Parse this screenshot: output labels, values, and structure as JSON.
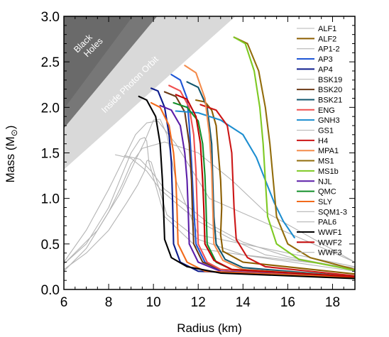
{
  "chart_data": {
    "type": "line",
    "title": "",
    "xlabel": "Radius (km)",
    "ylabel": "Mass (M",
    "ylabel_sub": "⊙",
    "ylabel_close": ")",
    "xlim": [
      6,
      19
    ],
    "ylim": [
      0,
      3.0
    ],
    "x_ticks": [
      6,
      8,
      10,
      12,
      14,
      16,
      18
    ],
    "x_tick_labels": [
      "6",
      "8",
      "10",
      "12",
      "14",
      "16",
      "18"
    ],
    "y_ticks": [
      0.0,
      0.5,
      1.0,
      1.5,
      2.0,
      2.5,
      3.0
    ],
    "y_tick_labels": [
      "0.0",
      "0.5",
      "1.0",
      "1.5",
      "2.0",
      "2.5",
      "3.0"
    ],
    "grid": false,
    "legend_position": "right",
    "regions": [
      {
        "label_lines": [
          "Black",
          "Holes"
        ],
        "color": "#777777",
        "boundary_slope": 0.2952
      },
      {
        "label_lines": [
          "Inside Photon Orbit"
        ],
        "color": "#d9d9d9",
        "boundary_slope": 0.2196
      }
    ],
    "series": [
      {
        "name": "ALF1",
        "color": "#b4b4b4",
        "x": [
          6.0,
          7.0,
          8.0,
          8.8,
          9.3,
          9.6,
          9.7,
          9.75,
          9.9,
          10.6,
          12,
          14,
          19
        ],
        "y": [
          0.22,
          0.4,
          0.65,
          0.95,
          1.15,
          1.3,
          1.41,
          1.42,
          1.4,
          0.82,
          0.55,
          0.38,
          0.24
        ]
      },
      {
        "name": "ALF2",
        "color": "#8c5e00",
        "x": [
          11.9,
          12.3,
          12.6,
          12.8,
          12.9,
          13.0,
          13.05,
          13.0,
          13.1,
          14,
          19
        ],
        "y": [
          2.08,
          2.06,
          1.97,
          1.8,
          1.5,
          1.2,
          0.9,
          0.6,
          0.42,
          0.3,
          0.17
        ]
      },
      {
        "name": "AP1-2",
        "color": "#b4b4b4",
        "x": [
          6.0,
          7.0,
          8.0,
          8.5,
          9.0,
          9.4,
          9.6,
          9.7,
          9.8,
          10.5,
          12,
          19
        ],
        "y": [
          0.28,
          0.5,
          0.9,
          1.2,
          1.5,
          1.65,
          1.67,
          1.63,
          1.4,
          0.8,
          0.45,
          0.2
        ]
      },
      {
        "name": "AP3",
        "color": "#1e56d6",
        "x": [
          10.8,
          11.2,
          11.5,
          11.6,
          11.7,
          11.8,
          11.9,
          12.3,
          13,
          19
        ],
        "y": [
          2.36,
          2.3,
          2.1,
          1.8,
          1.4,
          0.9,
          0.5,
          0.3,
          0.2,
          0.13
        ]
      },
      {
        "name": "AP4",
        "color": "#0d1c8c",
        "x": [
          9.9,
          10.2,
          10.5,
          10.7,
          10.8,
          10.85,
          10.9,
          11.2,
          12,
          19
        ],
        "y": [
          2.21,
          2.18,
          2.0,
          1.7,
          1.4,
          1.0,
          0.5,
          0.3,
          0.2,
          0.13
        ]
      },
      {
        "name": "BSK19",
        "color": "#b4b4b4",
        "x": [
          6.0,
          7.5,
          8.5,
          9.2,
          9.6,
          10.0,
          10.3,
          10.6,
          11,
          12,
          19
        ],
        "y": [
          0.28,
          0.65,
          1.05,
          1.42,
          1.62,
          1.86,
          1.87,
          1.7,
          1.2,
          0.6,
          0.25
        ]
      },
      {
        "name": "BSK20",
        "color": "#6b3a16",
        "x": [
          10.5,
          11.0,
          11.4,
          11.6,
          11.7,
          11.75,
          11.8,
          12.2,
          13,
          19
        ],
        "y": [
          2.17,
          2.12,
          1.95,
          1.6,
          1.2,
          0.8,
          0.5,
          0.3,
          0.22,
          0.14
        ]
      },
      {
        "name": "BSK21",
        "color": "#12566e",
        "x": [
          11.5,
          12.0,
          12.4,
          12.6,
          12.65,
          12.7,
          12.8,
          13.2,
          14,
          19
        ],
        "y": [
          2.28,
          2.22,
          2.0,
          1.6,
          1.2,
          0.8,
          0.5,
          0.33,
          0.24,
          0.14
        ]
      },
      {
        "name": "ENG",
        "color": "#f0504f",
        "x": [
          10.7,
          11.2,
          11.6,
          11.8,
          11.9,
          11.95,
          12.0,
          12.4,
          13,
          19
        ],
        "y": [
          2.24,
          2.18,
          2.0,
          1.7,
          1.3,
          0.9,
          0.5,
          0.3,
          0.22,
          0.14
        ]
      },
      {
        "name": "GNH3",
        "color": "#1d8ed0",
        "x": [
          11.0,
          12.0,
          13.0,
          14.0,
          14.6,
          15.0,
          15.4,
          15.8,
          16.3
        ],
        "y": [
          1.96,
          1.94,
          1.86,
          1.7,
          1.45,
          1.2,
          0.95,
          0.75,
          0.57
        ]
      },
      {
        "name": "GS1",
        "color": "#b4b4b4",
        "x": [
          8.3,
          9.0,
          9.7,
          10.3,
          11.0,
          12.0,
          13.5,
          15,
          19
        ],
        "y": [
          1.48,
          1.44,
          1.3,
          1.1,
          0.95,
          0.75,
          0.55,
          0.38,
          0.22
        ]
      },
      {
        "name": "H4",
        "color": "#cc1616",
        "x": [
          12.1,
          12.8,
          13.3,
          13.5,
          13.55,
          13.6,
          13.7,
          14.2,
          15,
          19
        ],
        "y": [
          2.03,
          1.97,
          1.8,
          1.5,
          1.2,
          0.9,
          0.55,
          0.35,
          0.25,
          0.15
        ]
      },
      {
        "name": "MPA1",
        "color": "#f48c4c",
        "x": [
          11.4,
          11.9,
          12.3,
          12.5,
          12.6,
          12.65,
          12.7,
          13.1,
          14,
          19
        ],
        "y": [
          2.46,
          2.38,
          2.1,
          1.7,
          1.3,
          0.9,
          0.5,
          0.32,
          0.22,
          0.14
        ]
      },
      {
        "name": "MS1",
        "color": "#926d0c",
        "x": [
          13.6,
          14.2,
          14.7,
          15.0,
          15.2,
          15.35,
          15.5,
          16.0,
          17,
          19
        ],
        "y": [
          2.77,
          2.7,
          2.4,
          2.0,
          1.6,
          1.2,
          0.8,
          0.5,
          0.35,
          0.22
        ]
      },
      {
        "name": "MS1b",
        "color": "#7ec923",
        "x": [
          13.6,
          14.1,
          14.5,
          14.75,
          14.9,
          15.0,
          15.1,
          15.5,
          16.5,
          19
        ],
        "y": [
          2.77,
          2.7,
          2.4,
          2.0,
          1.6,
          1.2,
          0.8,
          0.5,
          0.33,
          0.21
        ]
      },
      {
        "name": "NJL",
        "color": "#5b1ea8",
        "x": [
          10.3,
          10.8,
          11.2,
          11.4,
          11.5,
          11.55,
          11.6,
          12.0,
          13,
          19
        ],
        "y": [
          2.02,
          1.97,
          1.8,
          1.5,
          1.2,
          0.9,
          0.5,
          0.3,
          0.2,
          0.13
        ]
      },
      {
        "name": "QMC",
        "color": "#138f2a",
        "x": [
          10.9,
          11.5,
          12.0,
          12.2,
          12.3,
          12.35,
          12.4,
          12.8,
          13.5,
          19
        ],
        "y": [
          2.05,
          2.0,
          1.85,
          1.6,
          1.25,
          0.9,
          0.5,
          0.3,
          0.22,
          0.14
        ]
      },
      {
        "name": "SLY",
        "color": "#f26a1b",
        "x": [
          9.9,
          10.3,
          10.7,
          10.9,
          11.0,
          11.05,
          11.1,
          11.5,
          12.3,
          19
        ],
        "y": [
          2.05,
          2.0,
          1.8,
          1.5,
          1.2,
          0.9,
          0.5,
          0.3,
          0.2,
          0.13
        ]
      },
      {
        "name": "SQM1-3",
        "color": "#b4b4b4",
        "x": [
          6.0,
          7.0,
          8.0,
          8.6,
          9.0,
          9.5,
          10.5,
          12.0,
          13.5,
          15.0,
          19.0
        ],
        "y": [
          0.2,
          0.45,
          0.85,
          1.15,
          1.38,
          1.55,
          1.62,
          1.5,
          1.2,
          0.85,
          0.3
        ]
      },
      {
        "name": "PAL6",
        "color": "#b4b4b4",
        "x": [
          8.7,
          9.4,
          9.9,
          10.5,
          11.5,
          12.5,
          14.0,
          16.0,
          19.0
        ],
        "y": [
          1.47,
          1.43,
          1.3,
          1.1,
          0.92,
          0.72,
          0.52,
          0.36,
          0.22
        ]
      },
      {
        "name": "WWF1",
        "color": "#000000",
        "x": [
          9.35,
          9.7,
          10.1,
          10.3,
          10.4,
          10.45,
          10.5,
          10.8,
          11.5,
          13.0,
          19.0
        ],
        "y": [
          2.12,
          2.08,
          1.9,
          1.6,
          1.2,
          0.9,
          0.55,
          0.35,
          0.25,
          0.18,
          0.12
        ]
      },
      {
        "name": "WWF2",
        "color": "#c00000",
        "x": [
          11.0,
          11.5,
          11.9,
          12.1,
          12.2,
          12.25,
          12.3,
          12.7,
          13.5,
          19.0
        ],
        "y": [
          2.14,
          2.09,
          1.9,
          1.6,
          1.2,
          0.9,
          0.5,
          0.32,
          0.22,
          0.14
        ]
      },
      {
        "name": "WWF3",
        "color": "#b4b4b4",
        "x": [
          6.0,
          7.0,
          8.0,
          8.7,
          9.2,
          9.7,
          10.2,
          11.0,
          12.5,
          19.0
        ],
        "y": [
          0.3,
          0.65,
          1.1,
          1.45,
          1.7,
          1.83,
          1.85,
          1.6,
          1.0,
          0.3
        ]
      }
    ]
  }
}
